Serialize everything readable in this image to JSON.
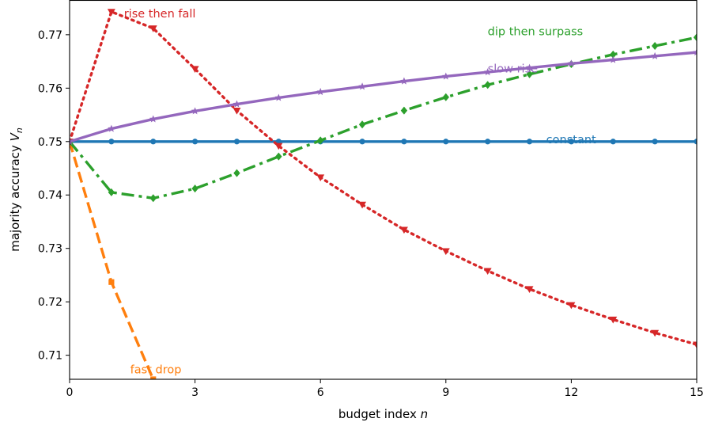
{
  "chart_data": {
    "type": "line",
    "title": "",
    "xlabel": "budget index",
    "xlabel_var": "n",
    "ylabel": "majority accuracy",
    "ylabel_var": "V",
    "ylabel_sub": "n",
    "xlim": [
      0,
      15
    ],
    "ylim": [
      0.7055,
      0.7765
    ],
    "x_ticks": [
      0,
      3,
      6,
      9,
      12,
      15
    ],
    "y_ticks": [
      0.71,
      0.72,
      0.73,
      0.74,
      0.75,
      0.76,
      0.77
    ],
    "y_tick_labels": [
      "0.71",
      "0.72",
      "0.73",
      "0.74",
      "0.75",
      "0.76",
      "0.77"
    ],
    "grid": false,
    "series": [
      {
        "key": "constant",
        "color": "#1f77b4",
        "dash": "solid",
        "marker": "circle",
        "x": [
          0,
          1,
          2,
          3,
          4,
          5,
          6,
          7,
          8,
          9,
          10,
          11,
          12,
          13,
          14,
          15
        ],
        "values": [
          0.75,
          0.75,
          0.75,
          0.75,
          0.75,
          0.75,
          0.75,
          0.75,
          0.75,
          0.75,
          0.75,
          0.75,
          0.75,
          0.75,
          0.75,
          0.75
        ]
      },
      {
        "key": "fast-drop",
        "color": "#ff7f0e",
        "dash": "dashed",
        "marker": "square",
        "x": [
          0,
          1,
          2
        ],
        "values": [
          0.75,
          0.7237,
          0.7055
        ]
      },
      {
        "key": "dip-then-surpass",
        "color": "#2ca02c",
        "dash": "dashdot",
        "marker": "diamond",
        "x": [
          0,
          1,
          2,
          3,
          4,
          5,
          6,
          7,
          8,
          9,
          10,
          11,
          12,
          13,
          14,
          15
        ],
        "values": [
          0.75,
          0.7405,
          0.7394,
          0.7412,
          0.7441,
          0.7472,
          0.7502,
          0.7532,
          0.7558,
          0.7583,
          0.7606,
          0.7626,
          0.7645,
          0.7663,
          0.7679,
          0.7695
        ]
      },
      {
        "key": "rise-then-fall",
        "color": "#d62728",
        "dash": "dotted",
        "marker": "triangle-down",
        "x": [
          0,
          1,
          2,
          3,
          4,
          5,
          6,
          7,
          8,
          9,
          10,
          11,
          12,
          13,
          14,
          15
        ],
        "values": [
          0.75,
          0.7743,
          0.7712,
          0.7636,
          0.7558,
          0.7492,
          0.7433,
          0.7382,
          0.7335,
          0.7295,
          0.7258,
          0.7224,
          0.7194,
          0.7167,
          0.7142,
          0.712
        ]
      },
      {
        "key": "slow-rise",
        "color": "#9467bd",
        "dash": "solid",
        "marker": "star",
        "x": [
          0,
          1,
          2,
          3,
          4,
          5,
          6,
          7,
          8,
          9,
          10,
          11,
          12,
          13,
          14,
          15
        ],
        "values": [
          0.75,
          0.7524,
          0.7542,
          0.7557,
          0.757,
          0.7582,
          0.7593,
          0.7603,
          0.7613,
          0.7622,
          0.763,
          0.7638,
          0.7646,
          0.7653,
          0.766,
          0.7667
        ]
      }
    ],
    "annotations": [
      {
        "text": "rise then fall",
        "color": "#d62728",
        "x": 1.3,
        "y": 0.7738,
        "anchor": "start"
      },
      {
        "text": "dip then surpass",
        "color": "#2ca02c",
        "x": 10.0,
        "y": 0.7705,
        "anchor": "start"
      },
      {
        "text": "slow rise",
        "color": "#9467bd",
        "x": 10.0,
        "y": 0.7635,
        "anchor": "start"
      },
      {
        "text": "constant",
        "color": "#1f77b4",
        "x": 11.4,
        "y": 0.7503,
        "anchor": "start"
      },
      {
        "text": "fast drop",
        "color": "#ff7f0e",
        "x": 1.45,
        "y": 0.7072,
        "anchor": "start"
      }
    ]
  }
}
